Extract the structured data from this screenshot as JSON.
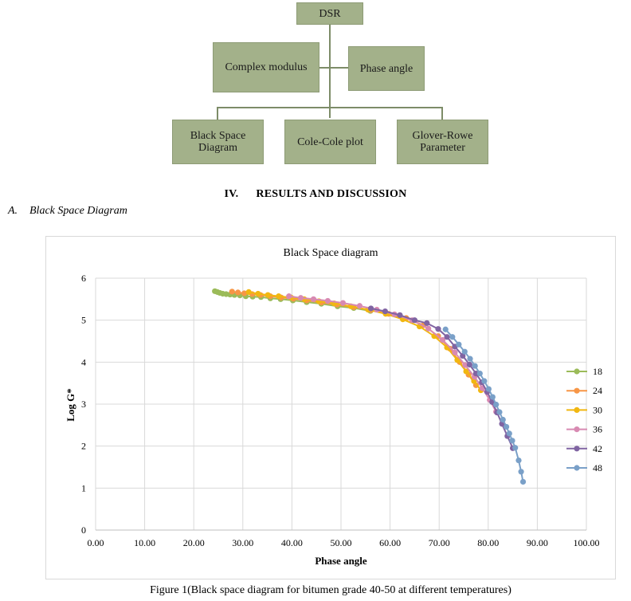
{
  "flowchart": {
    "root": "DSR",
    "left": "Complex modulus",
    "right": "Phase angle",
    "bottom": [
      "Black Space\nDiagram",
      "Cole-Cole plot",
      "Glover-Rowe\nParameter"
    ]
  },
  "section": {
    "number": "IV.",
    "title": "RESULTS AND DISCUSSION"
  },
  "subsection": {
    "letter": "A.",
    "title": "Black Space Diagram"
  },
  "caption": "Figure 1(Black space diagram for bitumen grade 40-50 at different temperatures)",
  "chart_data": {
    "type": "scatter",
    "title": "Black Space diagram",
    "xlabel": "Phase angle",
    "ylabel": "Log G*",
    "xlim": [
      0,
      100
    ],
    "ylim": [
      0,
      6
    ],
    "xticks": [
      "0.00",
      "10.00",
      "20.00",
      "30.00",
      "40.00",
      "50.00",
      "60.00",
      "70.00",
      "80.00",
      "90.00",
      "100.00"
    ],
    "yticks": [
      "0",
      "1",
      "2",
      "3",
      "4",
      "5",
      "6"
    ],
    "grid": true,
    "legend_position": "right",
    "series": [
      {
        "name": "18",
        "color": "#9bbb59",
        "colorDark": "#8fb080",
        "points": [
          [
            24.3,
            5.69
          ],
          [
            24.8,
            5.67
          ],
          [
            25.3,
            5.65
          ],
          [
            25.9,
            5.63
          ],
          [
            26.6,
            5.62
          ],
          [
            27.4,
            5.61
          ],
          [
            28.3,
            5.6
          ],
          [
            29.4,
            5.59
          ],
          [
            30.6,
            5.57
          ],
          [
            32.0,
            5.56
          ],
          [
            33.7,
            5.55
          ],
          [
            35.6,
            5.52
          ],
          [
            37.7,
            5.5
          ],
          [
            40.2,
            5.47
          ],
          [
            43.0,
            5.43
          ],
          [
            46.0,
            5.39
          ],
          [
            49.3,
            5.33
          ],
          [
            52.6,
            5.29
          ],
          [
            56.0,
            5.22
          ]
        ]
      },
      {
        "name": "24",
        "color": "#f79646",
        "points": [
          [
            27.8,
            5.68
          ],
          [
            29.0,
            5.66
          ],
          [
            30.3,
            5.64
          ],
          [
            31.9,
            5.62
          ],
          [
            33.6,
            5.6
          ],
          [
            35.6,
            5.57
          ],
          [
            37.8,
            5.54
          ],
          [
            40.3,
            5.51
          ],
          [
            43.0,
            5.47
          ],
          [
            46.0,
            5.42
          ],
          [
            49.2,
            5.37
          ],
          [
            52.6,
            5.31
          ],
          [
            56.1,
            5.24
          ],
          [
            59.7,
            5.15
          ],
          [
            63.3,
            5.05
          ],
          [
            66.8,
            4.88
          ],
          [
            69.8,
            4.62
          ],
          [
            72.2,
            4.32
          ],
          [
            74.2,
            4.0
          ],
          [
            76.0,
            3.7
          ],
          [
            77.5,
            3.45
          ]
        ]
      },
      {
        "name": "30",
        "color": "#f1b711",
        "points": [
          [
            31.2,
            5.67
          ],
          [
            33.1,
            5.63
          ],
          [
            35.1,
            5.6
          ],
          [
            37.3,
            5.57
          ],
          [
            39.8,
            5.54
          ],
          [
            42.5,
            5.5
          ],
          [
            45.5,
            5.45
          ],
          [
            48.6,
            5.4
          ],
          [
            52.0,
            5.33
          ],
          [
            55.5,
            5.25
          ],
          [
            59.1,
            5.15
          ],
          [
            62.6,
            5.02
          ],
          [
            66.0,
            4.85
          ],
          [
            69.0,
            4.62
          ],
          [
            71.6,
            4.35
          ],
          [
            73.7,
            4.05
          ],
          [
            75.5,
            3.78
          ],
          [
            77.1,
            3.55
          ],
          [
            78.5,
            3.33
          ]
        ]
      },
      {
        "name": "36",
        "color": "#d88ab2",
        "points": [
          [
            39.4,
            5.57
          ],
          [
            41.8,
            5.53
          ],
          [
            44.4,
            5.5
          ],
          [
            47.3,
            5.46
          ],
          [
            50.4,
            5.41
          ],
          [
            53.8,
            5.34
          ],
          [
            57.3,
            5.25
          ],
          [
            60.9,
            5.14
          ],
          [
            64.5,
            5.0
          ],
          [
            67.8,
            4.8
          ],
          [
            70.7,
            4.53
          ],
          [
            73.2,
            4.23
          ],
          [
            75.3,
            3.93
          ],
          [
            77.2,
            3.65
          ],
          [
            78.8,
            3.38
          ],
          [
            80.3,
            3.1
          ],
          [
            81.6,
            2.82
          ]
        ]
      },
      {
        "name": "42",
        "color": "#8064a2",
        "points": [
          [
            56.1,
            5.28
          ],
          [
            59.0,
            5.21
          ],
          [
            62.0,
            5.12
          ],
          [
            65.0,
            5.0
          ],
          [
            67.5,
            4.93
          ],
          [
            69.8,
            4.79
          ],
          [
            71.6,
            4.6
          ],
          [
            73.2,
            4.37
          ],
          [
            74.8,
            4.15
          ],
          [
            76.2,
            3.94
          ],
          [
            77.5,
            3.73
          ],
          [
            78.7,
            3.52
          ],
          [
            79.8,
            3.29
          ],
          [
            80.8,
            3.05
          ],
          [
            81.8,
            2.8
          ],
          [
            82.8,
            2.53
          ],
          [
            83.9,
            2.24
          ],
          [
            85.0,
            1.95
          ]
        ]
      },
      {
        "name": "48",
        "color": "#7aa0c8",
        "points": [
          [
            71.3,
            4.78
          ],
          [
            72.7,
            4.6
          ],
          [
            74.0,
            4.42
          ],
          [
            75.2,
            4.25
          ],
          [
            76.3,
            4.08
          ],
          [
            77.3,
            3.91
          ],
          [
            78.3,
            3.73
          ],
          [
            79.2,
            3.55
          ],
          [
            80.1,
            3.36
          ],
          [
            80.9,
            3.17
          ],
          [
            81.6,
            2.99
          ],
          [
            82.3,
            2.81
          ],
          [
            83.0,
            2.63
          ],
          [
            83.7,
            2.46
          ],
          [
            84.3,
            2.3
          ],
          [
            84.9,
            2.13
          ],
          [
            85.5,
            1.96
          ],
          [
            86.2,
            1.66
          ],
          [
            86.7,
            1.39
          ],
          [
            87.1,
            1.15
          ]
        ]
      }
    ]
  }
}
